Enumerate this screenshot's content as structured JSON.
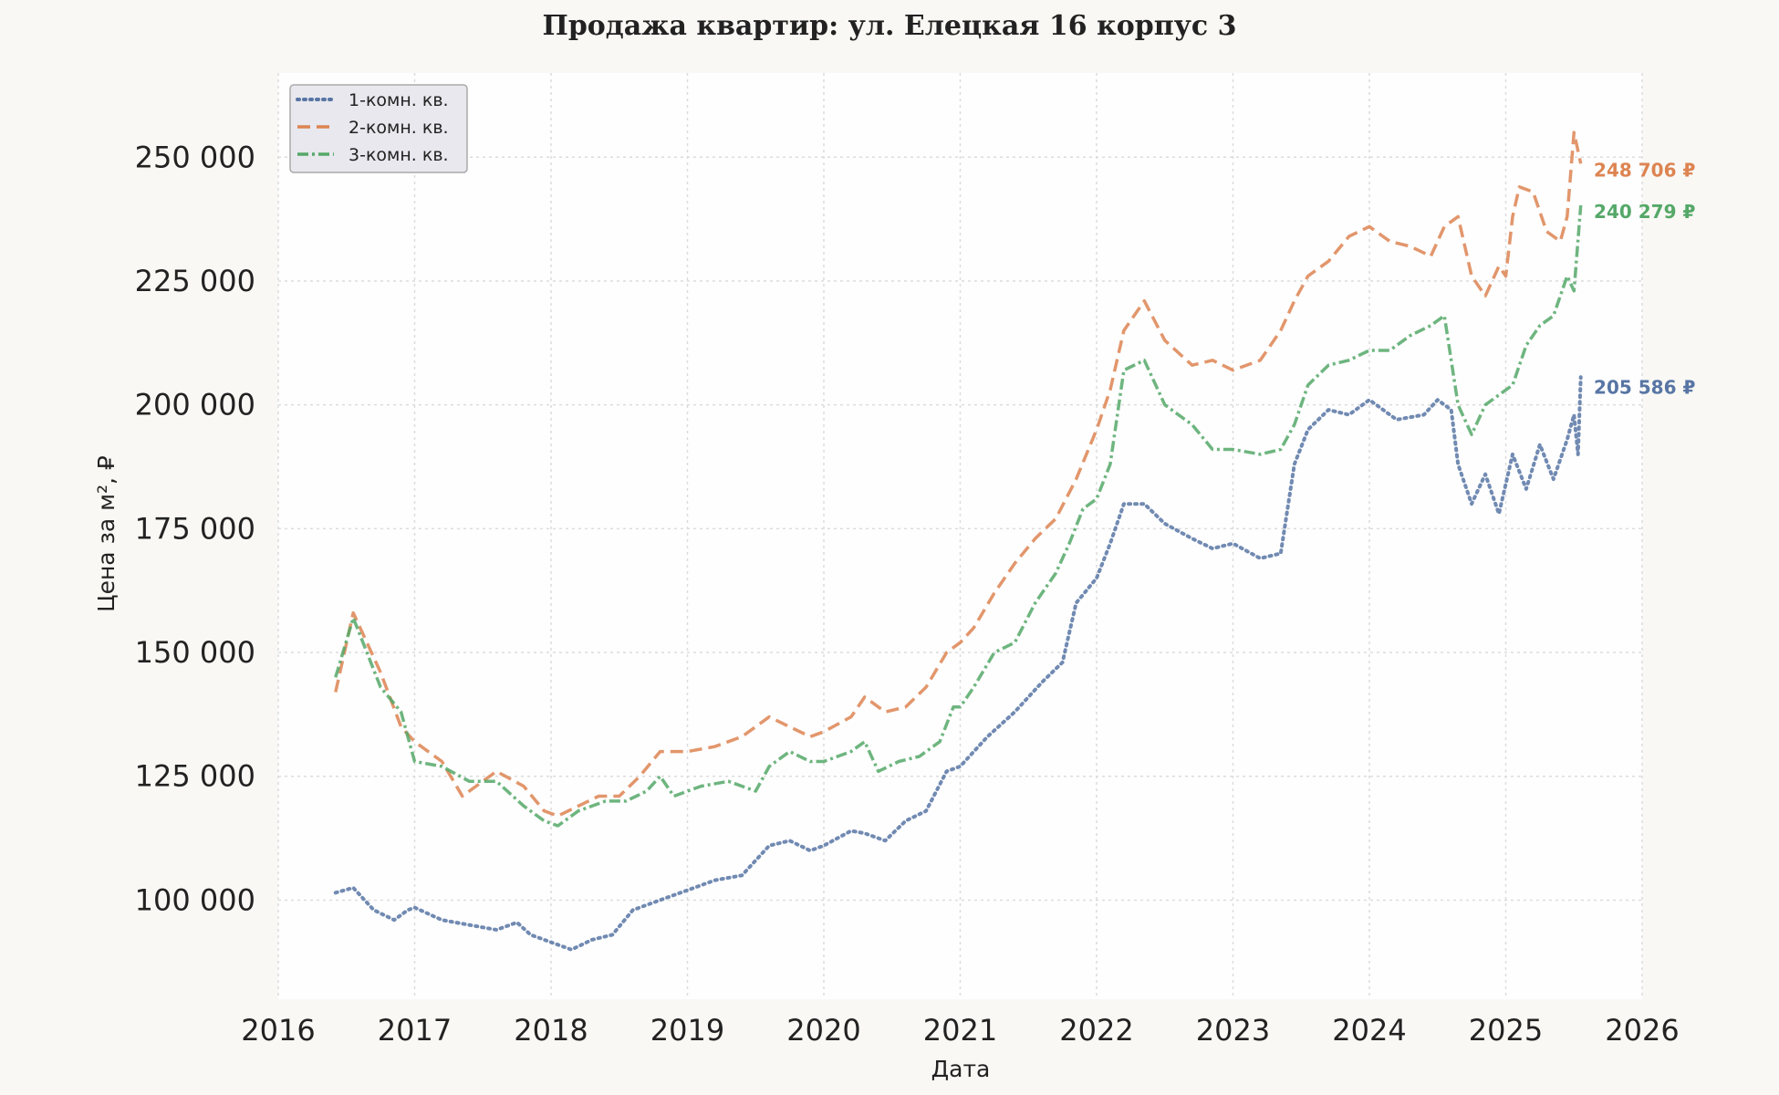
{
  "chart_data": {
    "type": "line",
    "title": "Продажа квартир: ул. Елецкая 16 корпус 3",
    "xlabel": "Дата",
    "ylabel": "Цена за м², ₽",
    "xlim": [
      2016,
      2026
    ],
    "ylim": [
      80000,
      267000
    ],
    "x_ticks": [
      "2016",
      "2017",
      "2018",
      "2019",
      "2020",
      "2021",
      "2022",
      "2023",
      "2024",
      "2025",
      "2026"
    ],
    "y_ticks": [
      {
        "value": 100000,
        "label": "100 000"
      },
      {
        "value": 125000,
        "label": "125 000"
      },
      {
        "value": 150000,
        "label": "150 000"
      },
      {
        "value": 175000,
        "label": "175 000"
      },
      {
        "value": 200000,
        "label": "200 000"
      },
      {
        "value": 225000,
        "label": "225 000"
      },
      {
        "value": 250000,
        "label": "250 000"
      }
    ],
    "grid": true,
    "legend_position": "top-left",
    "series": [
      {
        "name": "1-комн. кв.",
        "color": "#5875a4",
        "style": "dotted",
        "end_label": "205 586 ₽",
        "x": [
          2016.42,
          2016.55,
          2016.7,
          2016.85,
          2016.95,
          2017.0,
          2017.2,
          2017.4,
          2017.6,
          2017.75,
          2017.85,
          2018.0,
          2018.15,
          2018.3,
          2018.45,
          2018.6,
          2018.8,
          2019.0,
          2019.2,
          2019.4,
          2019.6,
          2019.75,
          2019.9,
          2020.0,
          2020.2,
          2020.3,
          2020.45,
          2020.6,
          2020.75,
          2020.9,
          2021.0,
          2021.2,
          2021.4,
          2021.6,
          2021.75,
          2021.85,
          2022.0,
          2022.1,
          2022.2,
          2022.35,
          2022.5,
          2022.7,
          2022.85,
          2023.0,
          2023.2,
          2023.35,
          2023.45,
          2023.55,
          2023.7,
          2023.85,
          2024.0,
          2024.2,
          2024.4,
          2024.5,
          2024.6,
          2024.65,
          2024.75,
          2024.85,
          2024.95,
          2025.05,
          2025.15,
          2025.25,
          2025.35,
          2025.45,
          2025.5,
          2025.53,
          2025.55
        ],
        "values": [
          101500,
          102500,
          98000,
          96000,
          98000,
          98500,
          96000,
          95000,
          94000,
          95500,
          93000,
          91500,
          90000,
          92000,
          93000,
          98000,
          100000,
          102000,
          104000,
          105000,
          111000,
          112000,
          110000,
          111000,
          114000,
          113500,
          112000,
          116000,
          118000,
          126000,
          127000,
          133000,
          138000,
          144000,
          148000,
          160000,
          165000,
          172000,
          180000,
          180000,
          176000,
          173000,
          171000,
          172000,
          169000,
          170000,
          188000,
          195000,
          199000,
          198000,
          201000,
          197000,
          198000,
          201000,
          199000,
          188000,
          180000,
          186000,
          178000,
          190000,
          183000,
          192000,
          185000,
          193000,
          198000,
          190000,
          205586
        ]
      },
      {
        "name": "2-комн. кв.",
        "color": "#dd8452",
        "style": "dashed",
        "end_label": "248 706 ₽",
        "x": [
          2016.42,
          2016.55,
          2016.65,
          2016.75,
          2016.9,
          2017.0,
          2017.2,
          2017.35,
          2017.6,
          2017.8,
          2017.95,
          2018.05,
          2018.2,
          2018.35,
          2018.5,
          2018.65,
          2018.8,
          2019.0,
          2019.2,
          2019.4,
          2019.6,
          2019.75,
          2019.9,
          2020.0,
          2020.2,
          2020.3,
          2020.45,
          2020.6,
          2020.75,
          2020.9,
          2021.0,
          2021.1,
          2021.25,
          2021.4,
          2021.55,
          2021.7,
          2021.85,
          2022.0,
          2022.1,
          2022.2,
          2022.35,
          2022.5,
          2022.7,
          2022.85,
          2023.0,
          2023.2,
          2023.35,
          2023.45,
          2023.55,
          2023.7,
          2023.85,
          2024.0,
          2024.15,
          2024.3,
          2024.45,
          2024.55,
          2024.65,
          2024.75,
          2024.85,
          2024.95,
          2025.0,
          2025.05,
          2025.1,
          2025.2,
          2025.3,
          2025.4,
          2025.45,
          2025.5,
          2025.55
        ],
        "values": [
          142000,
          158000,
          152000,
          146000,
          135000,
          132000,
          128000,
          121000,
          126000,
          123000,
          118000,
          117000,
          119000,
          121000,
          121000,
          125000,
          130000,
          130000,
          131000,
          133000,
          137000,
          135000,
          133000,
          134000,
          137000,
          141000,
          138000,
          139000,
          143000,
          150000,
          152000,
          155000,
          162000,
          168000,
          173000,
          177000,
          185000,
          195000,
          203000,
          215000,
          221000,
          213000,
          208000,
          209000,
          207000,
          209000,
          215000,
          221000,
          226000,
          229000,
          234000,
          236000,
          233000,
          232000,
          230000,
          236000,
          238000,
          226000,
          222000,
          228000,
          226000,
          238000,
          244000,
          243000,
          235000,
          233000,
          238000,
          255000,
          248706
        ]
      },
      {
        "name": "3-комн. кв.",
        "color": "#55a868",
        "style": "dash-dot",
        "end_label": "240 279 ₽",
        "x": [
          2016.42,
          2016.55,
          2016.65,
          2016.75,
          2016.9,
          2017.0,
          2017.2,
          2017.4,
          2017.6,
          2017.8,
          2017.95,
          2018.05,
          2018.2,
          2018.4,
          2018.55,
          2018.7,
          2018.8,
          2018.9,
          2019.1,
          2019.3,
          2019.5,
          2019.6,
          2019.75,
          2019.9,
          2020.0,
          2020.2,
          2020.3,
          2020.4,
          2020.55,
          2020.7,
          2020.85,
          2020.95,
          2021.0,
          2021.1,
          2021.25,
          2021.4,
          2021.55,
          2021.7,
          2021.8,
          2021.9,
          2022.0,
          2022.1,
          2022.2,
          2022.35,
          2022.5,
          2022.7,
          2022.85,
          2023.0,
          2023.2,
          2023.35,
          2023.45,
          2023.55,
          2023.7,
          2023.85,
          2024.0,
          2024.15,
          2024.3,
          2024.45,
          2024.55,
          2024.65,
          2024.75,
          2024.85,
          2024.95,
          2025.05,
          2025.15,
          2025.25,
          2025.35,
          2025.45,
          2025.5,
          2025.55
        ],
        "values": [
          145000,
          157000,
          150000,
          143000,
          138000,
          128000,
          127000,
          124000,
          124000,
          119000,
          116000,
          115000,
          118000,
          120000,
          120000,
          122000,
          125000,
          121000,
          123000,
          124000,
          122000,
          127000,
          130000,
          128000,
          128000,
          130000,
          132000,
          126000,
          128000,
          129000,
          132000,
          139000,
          139000,
          143000,
          150000,
          152000,
          160000,
          166000,
          172000,
          179000,
          181000,
          188000,
          207000,
          209000,
          200000,
          196000,
          191000,
          191000,
          190000,
          191000,
          196000,
          204000,
          208000,
          209000,
          211000,
          211000,
          214000,
          216000,
          218000,
          200000,
          194000,
          200000,
          202000,
          204000,
          212000,
          216000,
          218000,
          226000,
          223000,
          240279
        ]
      }
    ]
  }
}
